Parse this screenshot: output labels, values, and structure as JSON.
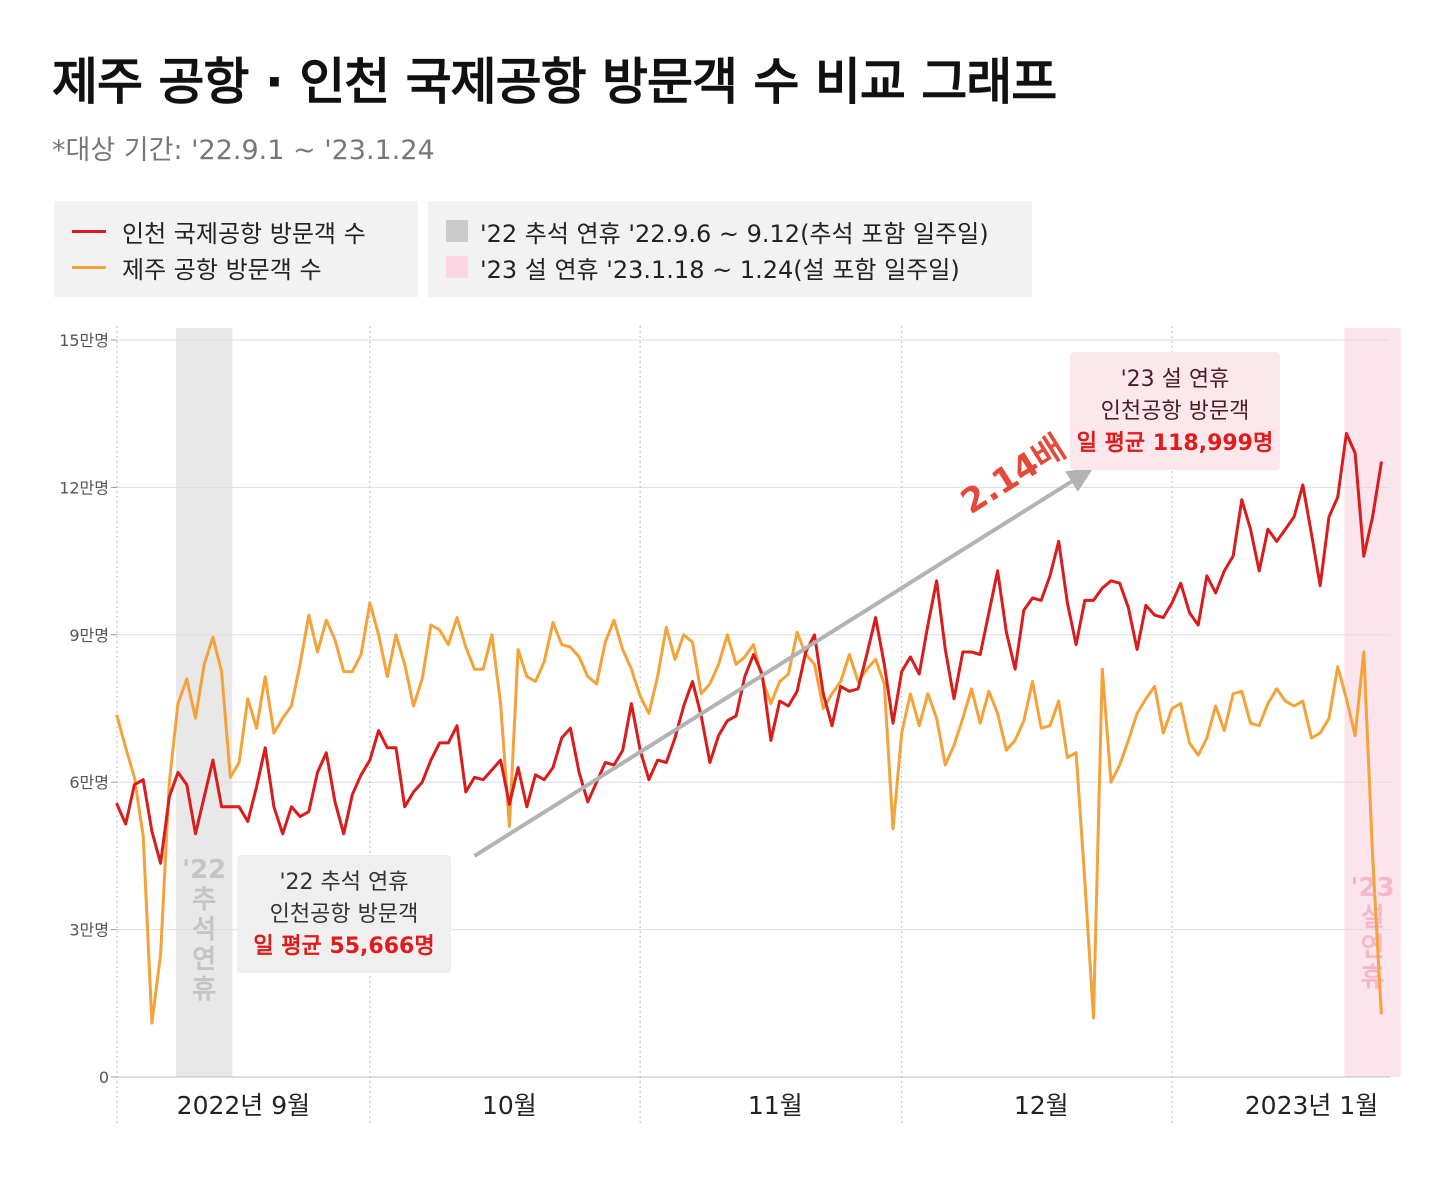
{
  "title": "제주 공항 · 인천 국제공항 방문객 수 비교 그래프",
  "subtitle": "*대상 기간: '22.9.1 ~ '23.1.24",
  "legend": {
    "lines": [
      {
        "label": "인천 국제공항 방문객 수",
        "color": "#d91c1c"
      },
      {
        "label": "제주 공항 방문객 수",
        "color": "#f4a23a"
      }
    ],
    "periods": [
      {
        "label": "'22 추석 연휴 '22.9.6 ~ 9.12(추석 포함 일주일)",
        "color": "#cccccc"
      },
      {
        "label": "'23 설 연휴 '23.1.18 ~ 1.24(설 포함 일주일)",
        "color": "#fcd6e2"
      }
    ]
  },
  "chart_data": {
    "type": "line",
    "x_unit": "day index (0 = 2022-09-01)",
    "xlim": [
      0,
      146
    ],
    "ylim": [
      0,
      150000
    ],
    "y_ticks": [
      {
        "value": 0,
        "label": "0"
      },
      {
        "value": 30000,
        "label": "3만명"
      },
      {
        "value": 60000,
        "label": "6만명"
      },
      {
        "value": 90000,
        "label": "9만명"
      },
      {
        "value": 120000,
        "label": "12만명"
      },
      {
        "value": 150000,
        "label": "15만명"
      }
    ],
    "x_ticks": [
      {
        "value": 14.5,
        "label": "2022년 9월"
      },
      {
        "value": 45,
        "label": "10월"
      },
      {
        "value": 75.5,
        "label": "11월"
      },
      {
        "value": 106,
        "label": "12월"
      },
      {
        "value": 137,
        "label": "2023년 1월"
      }
    ],
    "month_starts": [
      0,
      29,
      60,
      90,
      121
    ],
    "bands": [
      {
        "from": 7,
        "to": 13,
        "label": "'22 추석 연휴",
        "color": "#e8e8e8"
      },
      {
        "from": 141,
        "to": 147,
        "label": "'23 설 연휴",
        "color": "#fce4ec"
      }
    ],
    "band_text": [
      {
        "x": 10,
        "text": [
          "'22",
          "추",
          "석",
          "연",
          "휴"
        ],
        "color": "#c4c4c4"
      },
      {
        "x": 144,
        "text": [
          "'23",
          "설",
          "연",
          "휴"
        ],
        "color": "#f4b8c8"
      }
    ],
    "series": [
      {
        "name": "인천 국제공항 방문객 수",
        "color": "#d91c1c",
        "values": [
          55500,
          51500,
          59500,
          60500,
          50000,
          43500,
          57000,
          62000,
          59500,
          49500,
          57000,
          64500,
          55000,
          55000,
          55000,
          52000,
          59000,
          67000,
          55000,
          49500,
          55000,
          53000,
          54000,
          62000,
          66000,
          56000,
          49500,
          57500,
          61500,
          64500,
          70500,
          67000,
          67000,
          55000,
          58000,
          60000,
          64500,
          68000,
          68000,
          71500,
          58000,
          61000,
          60500,
          62500,
          64500,
          55500,
          63000,
          55000,
          61500,
          60500,
          63000,
          69000,
          71000,
          62000,
          56000,
          60000,
          64000,
          63500,
          66500,
          76000,
          66500,
          60500,
          64500,
          64000,
          69000,
          75500,
          80500,
          73500,
          64000,
          69500,
          72500,
          73500,
          81500,
          86000,
          82000,
          68500,
          76500,
          75500,
          78500,
          86500,
          90000,
          78000,
          71500,
          79500,
          78500,
          79000,
          86000,
          93500,
          84000,
          72000,
          82500,
          85500,
          82000,
          92000,
          101000,
          87000,
          77000,
          86500,
          86500,
          86000,
          94500,
          103000,
          90500,
          83000,
          95000,
          97500,
          97000,
          102000,
          109000,
          96500,
          88000,
          97000,
          97000,
          99500,
          101000,
          100500,
          95500,
          87000,
          96000,
          94000,
          93500,
          96500,
          100500,
          94500,
          92000,
          102000,
          98500,
          103000,
          106000,
          117500,
          111500,
          103000,
          111500,
          109000,
          111500,
          114000,
          120500,
          110500,
          100000,
          114000,
          118000,
          131000,
          127000,
          106000,
          114000,
          125000
        ]
      },
      {
        "name": "제주 공항 방문객 수",
        "color": "#f4a23a",
        "values": [
          73500,
          67000,
          61000,
          49000,
          11000,
          25000,
          60000,
          76000,
          81000,
          73000,
          84000,
          89500,
          82500,
          61000,
          64000,
          77000,
          71000,
          81500,
          70000,
          73000,
          75500,
          84000,
          94000,
          86500,
          93000,
          89000,
          82500,
          82500,
          86000,
          96500,
          90000,
          81500,
          90000,
          84000,
          75500,
          81000,
          92000,
          91000,
          88000,
          93500,
          87500,
          83000,
          83000,
          90000,
          76000,
          51000,
          87000,
          81500,
          80500,
          84500,
          92500,
          88000,
          87500,
          85500,
          81500,
          80000,
          88500,
          93000,
          87000,
          83000,
          77500,
          74000,
          81500,
          91500,
          85000,
          90000,
          88500,
          78000,
          80000,
          84000,
          90000,
          84000,
          85500,
          88000,
          81000,
          76000,
          80500,
          82000,
          90500,
          86000,
          84000,
          75000,
          78000,
          80500,
          86000,
          80500,
          83000,
          85000,
          80000,
          50500,
          70000,
          78000,
          71500,
          78000,
          73000,
          63500,
          67500,
          73000,
          79000,
          72000,
          78500,
          74000,
          66500,
          68500,
          72500,
          80500,
          71000,
          71500,
          76500,
          65000,
          66000,
          40000,
          12000,
          83000,
          60000,
          63500,
          68500,
          74000,
          77000,
          79500,
          70000,
          75000,
          76000,
          68000,
          65500,
          69000,
          75500,
          70500,
          78000,
          78500,
          72000,
          71500,
          76000,
          79000,
          76500,
          75500,
          76500,
          69000,
          70000,
          73000,
          83500,
          77000,
          69500,
          86500,
          45000,
          13000
        ]
      }
    ],
    "arrow": {
      "from": [
        41,
        45000
      ],
      "to": [
        112,
        124000
      ],
      "label": "2.14배",
      "label_color": "#e4493a"
    },
    "annotations": [
      {
        "lines": [
          "'22 추석 연휴",
          "인천공항 방문객"
        ],
        "highlight": "일 평균 55,666명",
        "anchor": [
          27,
          45000
        ],
        "bg": "#efefef"
      },
      {
        "lines": [
          "'23 설 연휴",
          "인천공항 방문객"
        ],
        "highlight": "일 평균 118,999명",
        "anchor": [
          116,
          147000
        ],
        "bg": "#fbe7ec"
      }
    ]
  }
}
